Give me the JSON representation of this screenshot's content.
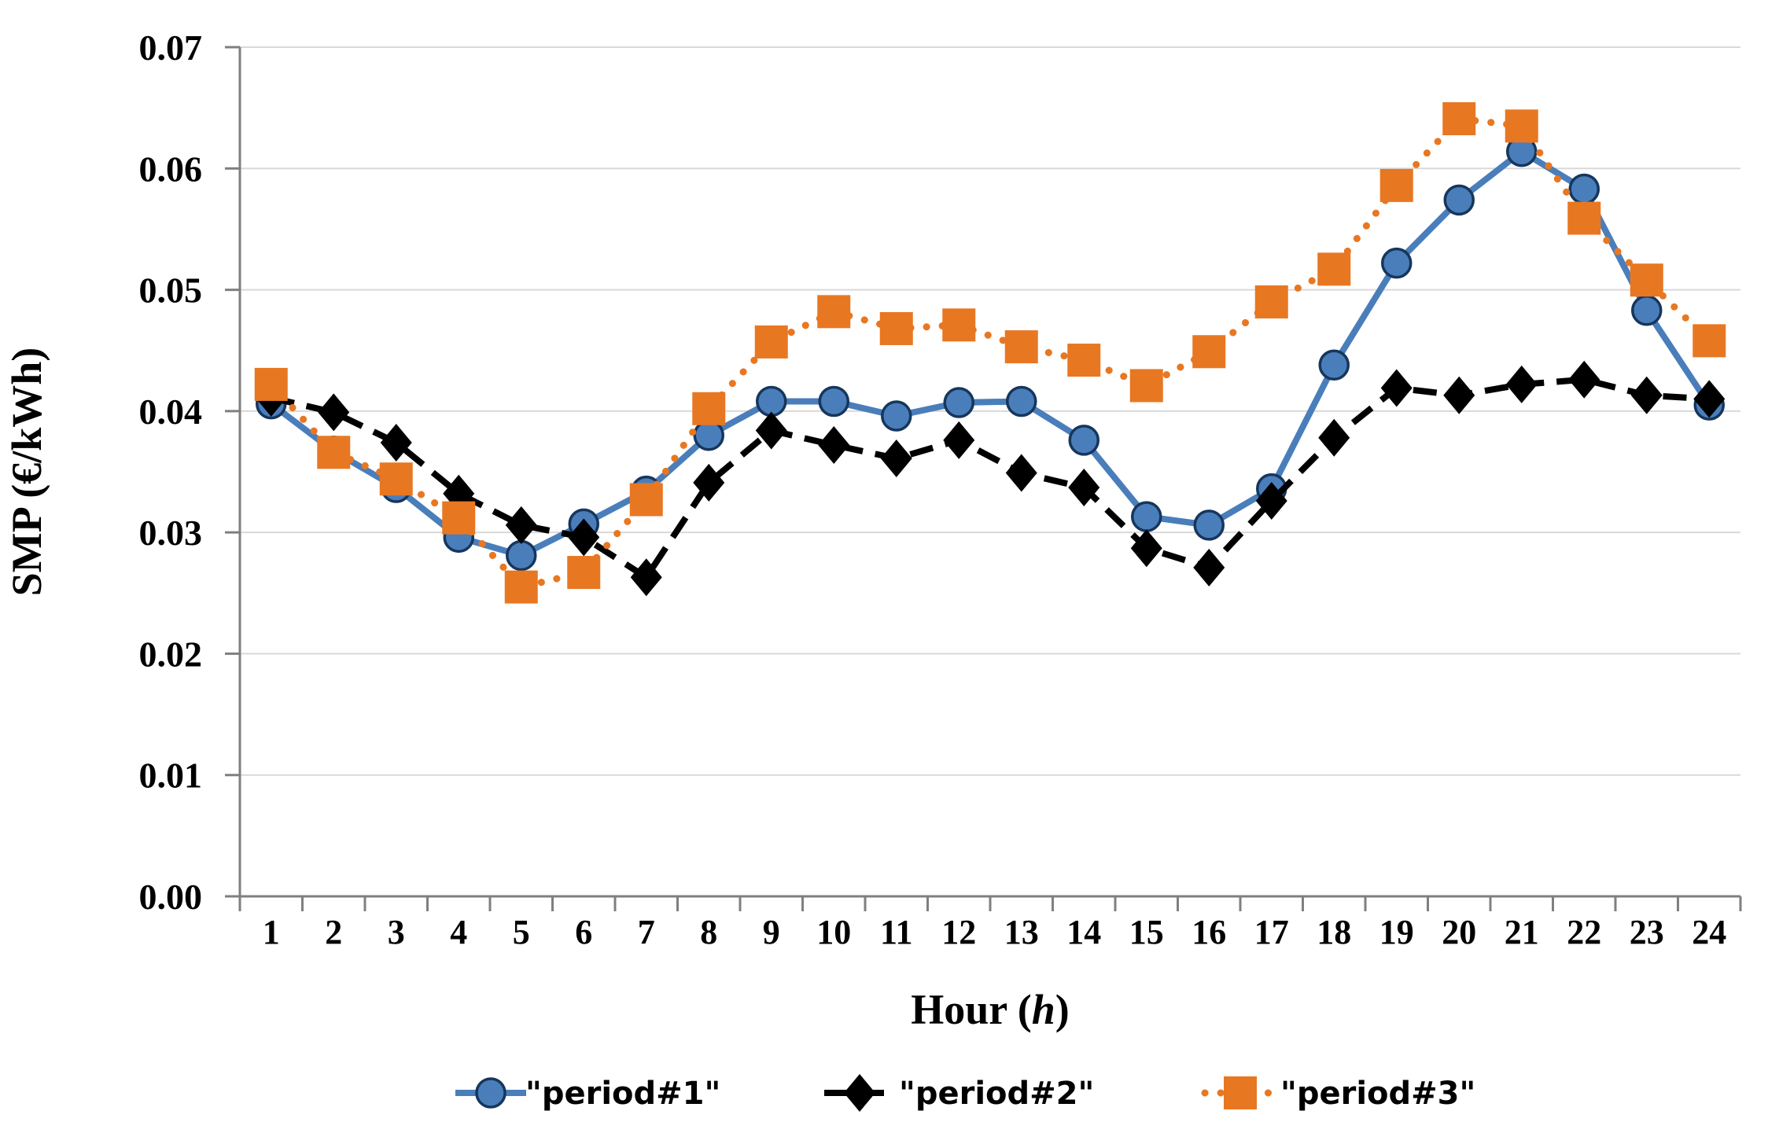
{
  "figure": {
    "background": "#ffffff",
    "grid_color": "#d9d9d9",
    "axis_color": "#7f7f7f"
  },
  "chart_data": {
    "type": "line",
    "title": "",
    "xlabel_parts": [
      "Hour (",
      "h",
      ")"
    ],
    "ylabel": "SMP (€/kWh)",
    "x": [
      1,
      2,
      3,
      4,
      5,
      6,
      7,
      8,
      9,
      10,
      11,
      12,
      13,
      14,
      15,
      16,
      17,
      18,
      19,
      20,
      21,
      22,
      23,
      24
    ],
    "ylim": [
      0,
      0.07
    ],
    "yticks": [
      "0.00",
      "0.01",
      "0.02",
      "0.03",
      "0.04",
      "0.05",
      "0.06",
      "0.07"
    ],
    "ytick_values": [
      0,
      0.01,
      0.02,
      0.03,
      0.04,
      0.05,
      0.06,
      0.07
    ],
    "grid": true,
    "legend_position": "bottom",
    "series": [
      {
        "name": "\"period#1\"",
        "color": "#4A7EBB",
        "marker_outline": "#16365C",
        "line_style": "solid",
        "marker": "circle",
        "values": [
          0.0406,
          0.0367,
          0.0337,
          0.0296,
          0.0281,
          0.0307,
          0.0334,
          0.038,
          0.0408,
          0.0408,
          0.0396,
          0.0407,
          0.0408,
          0.0376,
          0.0313,
          0.0306,
          0.0336,
          0.0438,
          0.0522,
          0.0574,
          0.0614,
          0.0583,
          0.0483,
          0.0405
        ]
      },
      {
        "name": "\"period#2\"",
        "color": "#000000",
        "marker_outline": "#000000",
        "line_style": "dashed",
        "marker": "diamond",
        "values": [
          0.0411,
          0.0399,
          0.0374,
          0.0332,
          0.0306,
          0.0296,
          0.0263,
          0.0341,
          0.0384,
          0.0372,
          0.0361,
          0.0376,
          0.0349,
          0.0337,
          0.0287,
          0.0271,
          0.0326,
          0.0378,
          0.0419,
          0.0413,
          0.0422,
          0.0426,
          0.0413,
          0.041
        ]
      },
      {
        "name": "\"period#3\"",
        "color": "#E87722",
        "marker_outline": "#E87722",
        "line_style": "dotted",
        "marker": "square",
        "values": [
          0.0422,
          0.0366,
          0.0344,
          0.0312,
          0.0255,
          0.0267,
          0.0327,
          0.0402,
          0.0457,
          0.0482,
          0.0468,
          0.0471,
          0.0453,
          0.0442,
          0.0421,
          0.0449,
          0.049,
          0.0517,
          0.0586,
          0.0641,
          0.0635,
          0.0559,
          0.0508,
          0.0458
        ]
      }
    ]
  }
}
